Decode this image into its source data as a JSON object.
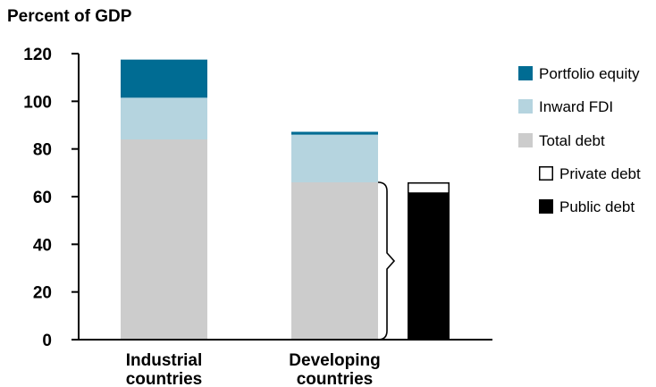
{
  "chart_data": {
    "type": "bar",
    "ylabel": "Percent of GDP",
    "ylim": [
      0,
      120
    ],
    "yticks": [
      0,
      20,
      40,
      60,
      80,
      100,
      120
    ],
    "categories": [
      "Industrial countries",
      "Developing countries"
    ],
    "category_lines": [
      [
        "Industrial",
        "countries"
      ],
      [
        "Developing",
        "countries"
      ]
    ],
    "series": [
      {
        "name": "Total debt",
        "values": [
          84,
          66
        ],
        "color": "#cccccc"
      },
      {
        "name": "Inward FDI",
        "values": [
          17.5,
          20
        ],
        "color": "#b5d4df"
      },
      {
        "name": "Portfolio equity",
        "values": [
          16,
          1.2
        ],
        "color": "#006c93"
      }
    ],
    "debt_breakdown": {
      "category": "Developing countries",
      "series": [
        {
          "name": "Public debt",
          "value": 61.5,
          "color": "#000000"
        },
        {
          "name": "Private debt",
          "value": 4.5,
          "color": "#ffffff"
        }
      ]
    },
    "legend": [
      {
        "label": "Portfolio equity",
        "color": "#006c93"
      },
      {
        "label": "Inward FDI",
        "color": "#b5d4df"
      },
      {
        "label": "Total debt",
        "color": "#cccccc"
      },
      {
        "label": "Private debt",
        "color": "#ffffff",
        "indent": true
      },
      {
        "label": "Public debt",
        "color": "#000000",
        "indent": true
      }
    ],
    "legend_position": "right",
    "grid": false
  }
}
